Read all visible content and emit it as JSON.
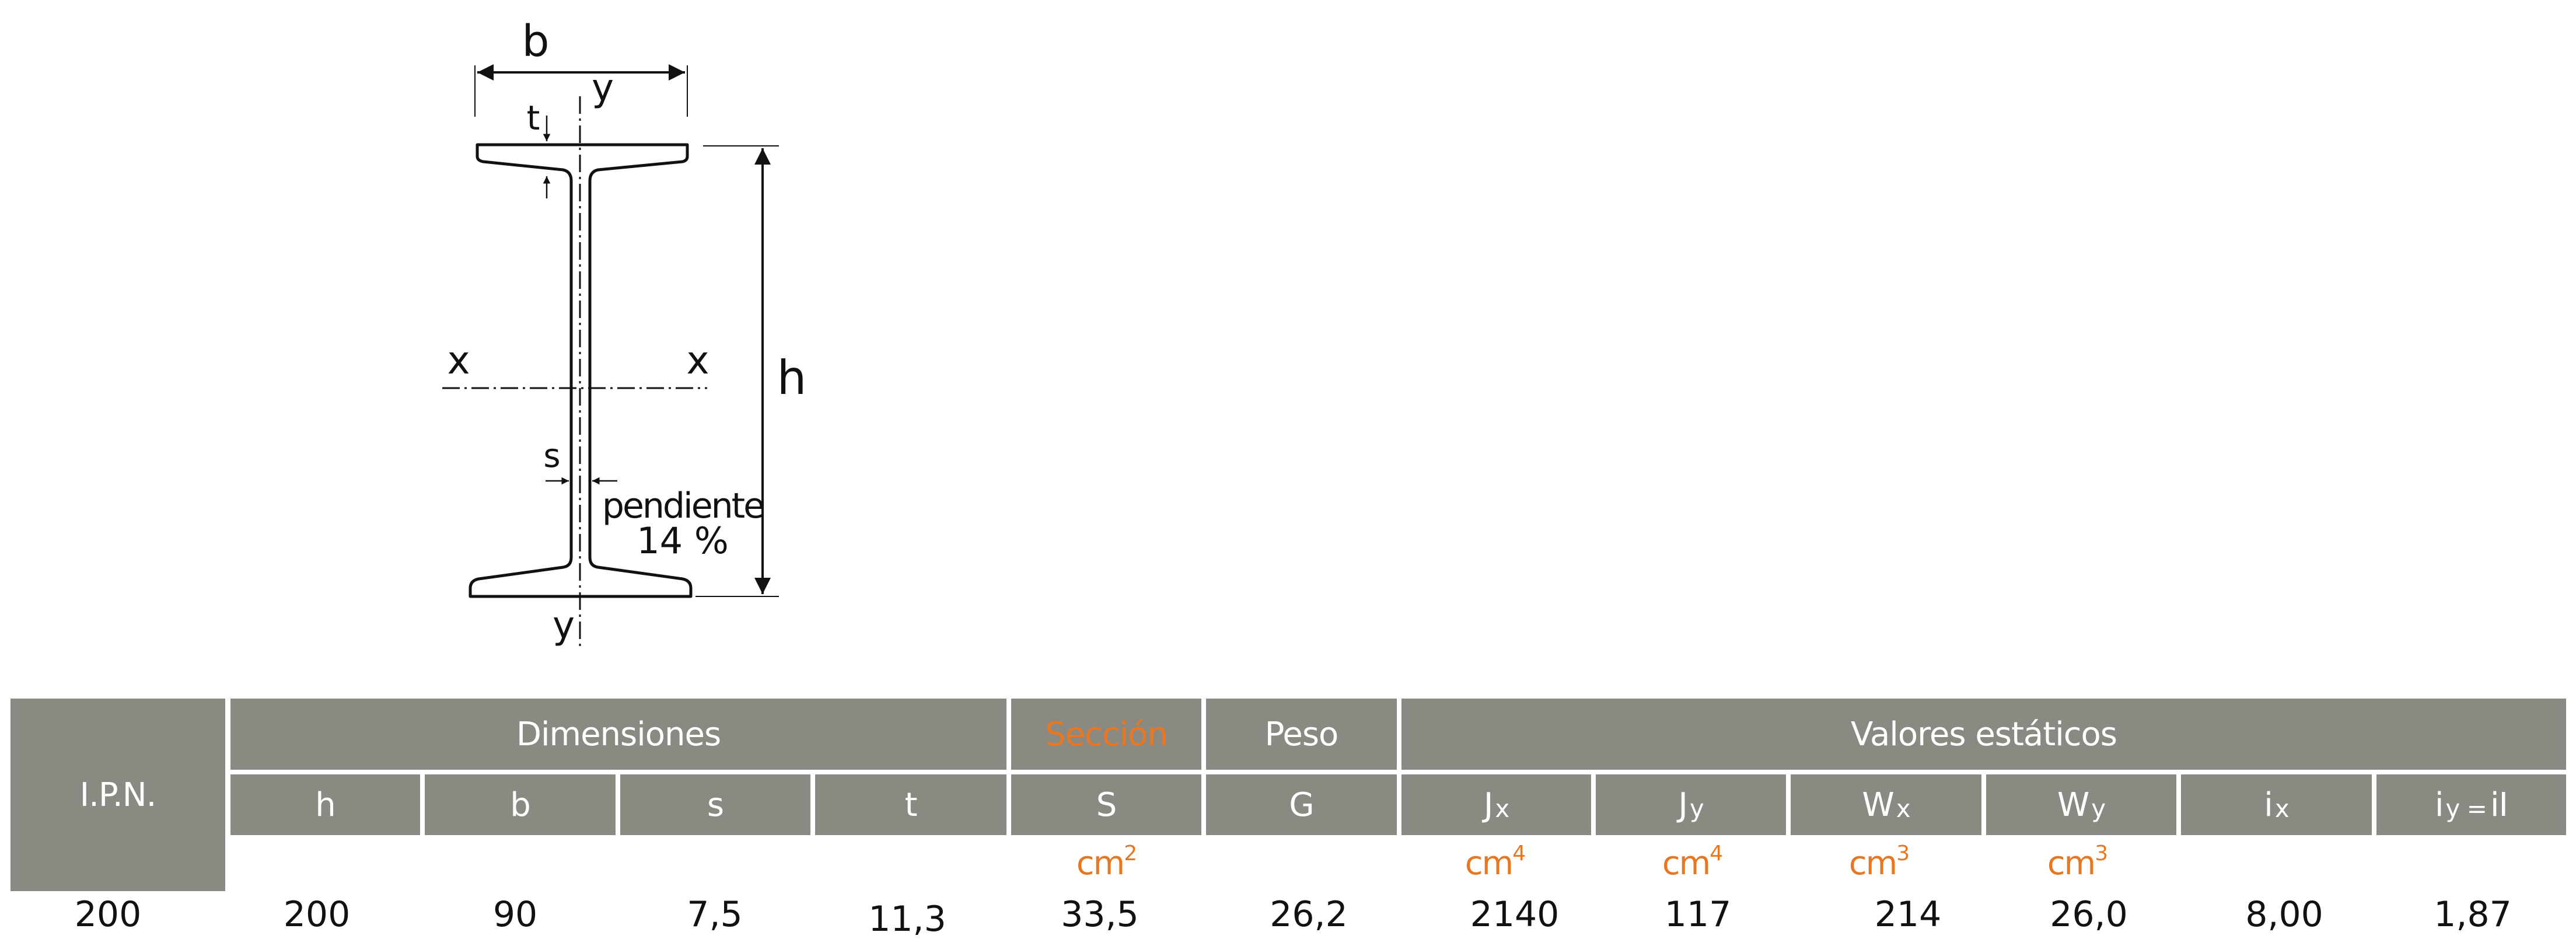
{
  "diagram": {
    "label_b": "b",
    "label_y_top": "y",
    "label_y_bottom": "y",
    "label_t": "t",
    "label_x_left": "x",
    "label_x_right": "x",
    "label_h": "h",
    "label_s": "s",
    "slope_label": "pendiente",
    "slope_value": "14 %"
  },
  "table": {
    "ipn_header": "I.P.N.",
    "group_dimensiones": "Dimensiones",
    "group_seccion": "Sección",
    "group_peso": "Peso",
    "group_valores": "Valores estáticos",
    "col_h": "h",
    "col_b": "b",
    "col_s": "s",
    "col_t": "t",
    "col_S": "S",
    "col_G": "G",
    "col_Jx_main": "J",
    "col_Jx_sub": "x",
    "col_Jy_main": "J",
    "col_Jy_sub": "y",
    "col_Wx_main": "W",
    "col_Wx_sub": "x",
    "col_Wy_main": "W",
    "col_Wy_sub": "y",
    "col_ix_main": "i",
    "col_ix_sub": "x",
    "col_iy_main": "i",
    "col_iy_sub": "y =",
    "col_iy_tail": "iI",
    "units": {
      "S": "cm",
      "S_exp": "2",
      "Jx": "cm",
      "Jx_exp": "4",
      "Jy": "cm",
      "Jy_exp": "4",
      "Wx": "cm",
      "Wx_exp": "3",
      "Wy": "cm",
      "Wy_exp": "3"
    },
    "row": {
      "ipn": "200",
      "h": "200",
      "b": "90",
      "s": "7,5",
      "t": "11,3",
      "S": "33,5",
      "G": "26,2",
      "Jx": "2140",
      "Jy": "117",
      "Wx": "214",
      "Wy": "26,0",
      "ix": "8,00",
      "iy": "1,87"
    }
  },
  "colors": {
    "header_bg": "#8a8a83",
    "header_text": "#ffffff",
    "accent": "#e87722",
    "line": "#111111"
  }
}
